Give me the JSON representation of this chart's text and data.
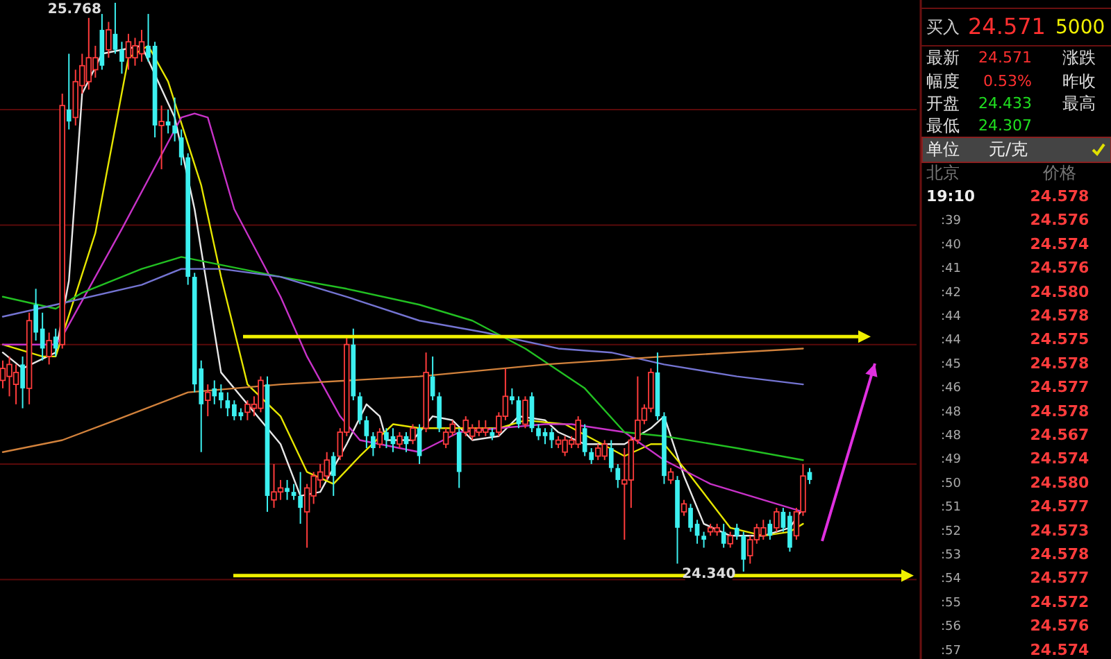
{
  "chart_data": [
    {
      "type": "candlestick",
      "grid": "y",
      "categories": [
        null,
        null,
        null,
        null,
        null,
        null,
        null,
        null,
        null,
        null,
        null,
        null,
        null,
        null,
        null,
        null,
        null,
        null,
        null,
        null,
        null,
        null,
        null,
        null,
        null,
        null,
        null,
        null,
        null,
        null,
        null,
        null,
        null,
        null,
        null,
        null,
        null,
        null,
        null,
        null,
        null,
        null,
        null,
        null,
        null,
        null,
        null,
        null,
        null,
        null,
        null,
        null,
        null,
        null,
        null,
        null,
        null,
        null,
        null,
        null,
        null,
        null,
        null,
        null,
        null,
        null,
        null,
        null,
        null,
        null,
        null,
        null,
        null,
        null,
        null,
        null,
        null,
        null,
        null,
        null,
        null,
        null,
        null,
        null,
        null,
        null,
        null,
        null,
        null,
        null,
        null,
        null,
        null,
        null,
        null,
        null,
        null,
        null,
        null,
        null,
        null,
        null,
        null,
        null,
        null,
        null,
        null,
        null,
        null,
        null,
        null,
        null,
        null,
        null,
        null,
        null,
        null,
        null,
        null,
        null,
        null,
        null,
        null
      ],
      "ohlc": [
        [
          24.82,
          24.87,
          24.8,
          24.85
        ],
        [
          24.83,
          24.88,
          24.78,
          24.86
        ],
        [
          24.81,
          24.86,
          24.76,
          24.84
        ],
        [
          24.86,
          24.88,
          24.75,
          24.8
        ],
        [
          24.8,
          24.99,
          24.76,
          24.97
        ],
        [
          25.01,
          25.05,
          24.92,
          24.94
        ],
        [
          24.95,
          24.99,
          24.87,
          24.9
        ],
        [
          24.88,
          24.94,
          24.86,
          24.92
        ],
        [
          24.93,
          24.95,
          24.88,
          24.9
        ],
        [
          24.91,
          25.54,
          24.9,
          25.51
        ],
        [
          25.5,
          25.64,
          25.45,
          25.47
        ],
        [
          25.48,
          25.6,
          25.46,
          25.57
        ],
        [
          25.56,
          25.64,
          25.54,
          25.61
        ],
        [
          25.57,
          25.73,
          25.55,
          25.63
        ],
        [
          25.6,
          25.66,
          25.58,
          25.63
        ],
        [
          25.7,
          25.74,
          25.6,
          25.61
        ],
        [
          25.65,
          25.72,
          25.63,
          25.7
        ],
        [
          25.69,
          25.768,
          25.64,
          25.65
        ],
        [
          25.65,
          25.67,
          25.59,
          25.62
        ],
        [
          25.63,
          25.69,
          25.6,
          25.67
        ],
        [
          25.63,
          25.68,
          25.61,
          25.66
        ],
        [
          25.64,
          25.7,
          25.62,
          25.67
        ],
        [
          25.66,
          25.74,
          25.62,
          25.63
        ],
        [
          25.66,
          25.67,
          25.43,
          25.46
        ],
        [
          25.46,
          25.51,
          25.35,
          25.47
        ],
        [
          25.47,
          25.5,
          25.44,
          25.46
        ],
        [
          25.46,
          25.53,
          25.42,
          25.44
        ],
        [
          25.43,
          25.45,
          25.36,
          25.38
        ],
        [
          25.38,
          25.39,
          25.06,
          25.08
        ],
        [
          25.08,
          25.09,
          24.79,
          24.81
        ],
        [
          24.85,
          24.87,
          24.64,
          24.76
        ],
        [
          24.77,
          24.81,
          24.73,
          24.79
        ],
        [
          24.8,
          24.82,
          24.76,
          24.78
        ],
        [
          24.79,
          24.81,
          24.75,
          24.77
        ],
        [
          24.77,
          24.79,
          24.73,
          24.75
        ],
        [
          24.76,
          24.77,
          24.72,
          24.73
        ],
        [
          24.74,
          24.75,
          24.72,
          24.73
        ],
        [
          24.74,
          24.77,
          24.72,
          24.76
        ],
        [
          24.75,
          24.78,
          24.73,
          24.76
        ],
        [
          24.75,
          24.83,
          24.74,
          24.82
        ],
        [
          24.81,
          24.83,
          24.49,
          24.53
        ],
        [
          24.52,
          24.61,
          24.5,
          24.54
        ],
        [
          24.54,
          24.57,
          24.52,
          24.55
        ],
        [
          24.55,
          24.57,
          24.52,
          24.54
        ],
        [
          24.54,
          24.56,
          24.52,
          24.53
        ],
        [
          24.53,
          24.59,
          24.46,
          24.5
        ],
        [
          24.49,
          24.56,
          24.4,
          24.55
        ],
        [
          24.53,
          24.59,
          24.51,
          24.58
        ],
        [
          24.57,
          24.61,
          24.55,
          24.59
        ],
        [
          24.58,
          24.64,
          24.57,
          24.62
        ],
        [
          24.63,
          24.64,
          24.53,
          24.58
        ],
        [
          24.63,
          24.7,
          24.62,
          24.69
        ],
        [
          24.69,
          24.93,
          24.68,
          24.91
        ],
        [
          24.91,
          24.95,
          24.77,
          24.78
        ],
        [
          24.78,
          24.79,
          24.71,
          24.72
        ],
        [
          24.72,
          24.73,
          24.65,
          24.68
        ],
        [
          24.68,
          24.69,
          24.63,
          24.65
        ],
        [
          24.66,
          24.7,
          24.65,
          24.69
        ],
        [
          24.69,
          24.7,
          24.65,
          24.67
        ],
        [
          24.68,
          24.7,
          24.64,
          24.66
        ],
        [
          24.66,
          24.69,
          24.65,
          24.68
        ],
        [
          24.68,
          24.69,
          24.64,
          24.66
        ],
        [
          24.67,
          24.71,
          24.66,
          24.7
        ],
        [
          24.7,
          24.71,
          24.61,
          24.63
        ],
        [
          24.7,
          24.89,
          24.69,
          24.84
        ],
        [
          24.83,
          24.88,
          24.77,
          24.78
        ],
        [
          24.78,
          24.79,
          24.69,
          24.7
        ],
        [
          24.66,
          24.7,
          24.65,
          24.69
        ],
        [
          24.69,
          24.72,
          24.68,
          24.71
        ],
        [
          24.69,
          24.7,
          24.55,
          24.59
        ],
        [
          24.69,
          24.73,
          24.68,
          24.72
        ],
        [
          24.68,
          24.71,
          24.67,
          24.7
        ],
        [
          24.69,
          24.72,
          24.68,
          24.7
        ],
        [
          24.69,
          24.72,
          24.68,
          24.7
        ],
        [
          24.69,
          24.7,
          24.67,
          24.68
        ],
        [
          24.69,
          24.74,
          24.68,
          24.73
        ],
        [
          24.73,
          24.85,
          24.72,
          24.78
        ],
        [
          24.78,
          24.8,
          24.76,
          24.77
        ],
        [
          24.77,
          24.78,
          24.7,
          24.71
        ],
        [
          24.71,
          24.78,
          24.7,
          24.77
        ],
        [
          24.78,
          24.79,
          24.69,
          24.7
        ],
        [
          24.7,
          24.71,
          24.67,
          24.68
        ],
        [
          24.69,
          24.7,
          24.66,
          24.68
        ],
        [
          24.69,
          24.7,
          24.65,
          24.67
        ],
        [
          24.66,
          24.68,
          24.65,
          24.67
        ],
        [
          24.64,
          24.68,
          24.63,
          24.67
        ],
        [
          24.66,
          24.68,
          24.65,
          24.67
        ],
        [
          24.66,
          24.73,
          24.65,
          24.72
        ],
        [
          24.7,
          24.71,
          24.63,
          24.64
        ],
        [
          24.64,
          24.65,
          24.61,
          24.62
        ],
        [
          24.63,
          24.66,
          24.62,
          24.65
        ],
        [
          24.63,
          24.67,
          24.62,
          24.66
        ],
        [
          24.65,
          24.67,
          24.59,
          24.6
        ],
        [
          24.6,
          24.61,
          24.55,
          24.57
        ],
        [
          24.56,
          24.65,
          24.42,
          24.57
        ],
        [
          24.57,
          24.68,
          24.5,
          24.67
        ],
        [
          24.67,
          24.83,
          24.66,
          24.72
        ],
        [
          24.72,
          24.76,
          24.71,
          24.75
        ],
        [
          24.75,
          24.85,
          24.74,
          24.84
        ],
        [
          24.84,
          24.89,
          24.72,
          24.73
        ],
        [
          24.73,
          24.74,
          24.56,
          24.58
        ],
        [
          24.57,
          24.6,
          24.56,
          24.59
        ],
        [
          24.57,
          24.58,
          24.36,
          24.45
        ],
        [
          24.49,
          24.52,
          24.48,
          24.51
        ],
        [
          24.5,
          24.51,
          24.44,
          24.45
        ],
        [
          24.46,
          24.47,
          24.41,
          24.43
        ],
        [
          24.43,
          24.44,
          24.4,
          24.42
        ],
        [
          24.44,
          24.46,
          24.43,
          24.45
        ],
        [
          24.44,
          24.46,
          24.43,
          24.45
        ],
        [
          24.44,
          24.46,
          24.4,
          24.41
        ],
        [
          24.41,
          24.44,
          24.4,
          24.43
        ],
        [
          24.45,
          24.46,
          24.42,
          24.43
        ],
        [
          24.43,
          24.44,
          24.34,
          24.37
        ],
        [
          24.38,
          24.43,
          24.36,
          24.42
        ],
        [
          24.42,
          24.46,
          24.41,
          24.45
        ],
        [
          24.43,
          24.47,
          24.42,
          24.45
        ],
        [
          24.46,
          24.47,
          24.42,
          24.43
        ],
        [
          24.45,
          24.5,
          24.44,
          24.49
        ],
        [
          24.49,
          24.5,
          24.44,
          24.45
        ],
        [
          24.48,
          24.49,
          24.39,
          24.4
        ],
        [
          24.43,
          24.5,
          24.42,
          24.49
        ],
        [
          24.49,
          24.61,
          24.48,
          24.58
        ],
        [
          24.59,
          24.6,
          24.56,
          24.57
        ]
      ],
      "series": [
        {
          "type": "line",
          "color": "#e8e8e8",
          "values": [
            24.89,
            null,
            null,
            24.85,
            null,
            null,
            null,
            null,
            24.89,
            null,
            25.07,
            null,
            25.54,
            null,
            null,
            25.64,
            null,
            null,
            null,
            null,
            null,
            25.66,
            null,
            null,
            null,
            null,
            25.48,
            null,
            null,
            25.25,
            null,
            null,
            null,
            24.84,
            null,
            null,
            null,
            24.76,
            null,
            null,
            null,
            null,
            24.66,
            null,
            null,
            24.53,
            null,
            null,
            24.54,
            null,
            null,
            null,
            24.66,
            null,
            null,
            24.76,
            null,
            24.73,
            24.67,
            null,
            null,
            null,
            24.67,
            null,
            null,
            24.73,
            null,
            null,
            24.72,
            null,
            null,
            24.67,
            null,
            null,
            null,
            24.68,
            null,
            null,
            24.73,
            null,
            null,
            null,
            24.72,
            null,
            24.69,
            null,
            null,
            null,
            24.66,
            null,
            null,
            null,
            null,
            null,
            24.66,
            null,
            null,
            null,
            24.7,
            null,
            24.73,
            null,
            null,
            24.58,
            null,
            null,
            24.46,
            null,
            null,
            null,
            24.43,
            null,
            null,
            null,
            null,
            24.43,
            null,
            null,
            null,
            24.45,
            null,
            24.5,
            null
          ]
        },
        {
          "type": "line",
          "color": "#e6e600",
          "values": [
            24.91,
            null,
            null,
            null,
            null,
            null,
            24.88,
            null,
            24.88,
            null,
            null,
            null,
            null,
            null,
            25.19,
            null,
            null,
            null,
            null,
            25.63,
            null,
            null,
            25.66,
            null,
            null,
            25.57,
            null,
            null,
            null,
            null,
            25.31,
            null,
            null,
            25.08,
            null,
            null,
            null,
            24.81,
            null,
            null,
            null,
            null,
            24.73,
            null,
            null,
            null,
            24.59,
            null,
            null,
            null,
            24.56,
            null,
            null,
            null,
            24.63,
            null,
            null,
            null,
            null,
            24.71,
            null,
            null,
            null,
            24.7,
            null,
            null,
            null,
            24.7,
            null,
            null,
            null,
            null,
            null,
            null,
            null,
            24.7,
            null,
            null,
            null,
            24.72,
            null,
            null,
            null,
            null,
            null,
            24.71,
            null,
            null,
            null,
            null,
            null,
            null,
            null,
            null,
            24.63,
            null,
            null,
            null,
            24.66,
            null,
            24.66,
            null,
            null,
            null,
            24.58,
            null,
            null,
            null,
            null,
            null,
            24.45,
            null,
            null,
            null,
            null,
            24.43,
            null,
            null,
            null,
            24.44,
            null,
            24.46,
            null
          ]
        },
        {
          "type": "line",
          "color": "#c832c8",
          "values": [
            24.91,
            null,
            24.91,
            null,
            null,
            null,
            null,
            null,
            24.91,
            24.93,
            null,
            null,
            null,
            null,
            null,
            null,
            null,
            null,
            25.2,
            null,
            null,
            null,
            null,
            null,
            null,
            null,
            null,
            25.48,
            null,
            25.49,
            null,
            25.48,
            null,
            null,
            null,
            25.25,
            null,
            null,
            null,
            null,
            null,
            null,
            25.03,
            null,
            null,
            null,
            24.88,
            null,
            null,
            null,
            null,
            24.73,
            null,
            null,
            24.67,
            null,
            null,
            24.66,
            null,
            null,
            null,
            null,
            null,
            24.64,
            null,
            null,
            null,
            null,
            null,
            24.69,
            null,
            null,
            null,
            null,
            null,
            24.7,
            null,
            null,
            null,
            null,
            null,
            null,
            24.71,
            null,
            null,
            null,
            24.71,
            null,
            null,
            null,
            null,
            null,
            null,
            null,
            24.69,
            null,
            null,
            null,
            null,
            null,
            24.62,
            null,
            null,
            null,
            null,
            null,
            null,
            24.56,
            null,
            null,
            null,
            null,
            null,
            null,
            null,
            24.52,
            null,
            null,
            null,
            24.5,
            null,
            24.49,
            null
          ]
        },
        {
          "type": "line",
          "color": "#22c022",
          "values": [
            25.03,
            null,
            null,
            null,
            null,
            null,
            null,
            null,
            25.0,
            null,
            null,
            null,
            25.04,
            null,
            null,
            null,
            null,
            null,
            null,
            null,
            null,
            25.1,
            null,
            null,
            null,
            null,
            null,
            25.13,
            null,
            null,
            null,
            null,
            null,
            25.11,
            null,
            null,
            null,
            null,
            null,
            null,
            null,
            null,
            25.08,
            null,
            null,
            null,
            null,
            null,
            null,
            null,
            null,
            null,
            25.05,
            null,
            null,
            null,
            null,
            null,
            null,
            null,
            null,
            null,
            null,
            25.01,
            null,
            null,
            null,
            null,
            null,
            null,
            null,
            24.97,
            null,
            null,
            null,
            null,
            null,
            null,
            null,
            24.9,
            null,
            null,
            null,
            null,
            null,
            null,
            null,
            null,
            24.8,
            null,
            null,
            null,
            null,
            null,
            24.69,
            null,
            null,
            null,
            null,
            null,
            24.68,
            null,
            null,
            null,
            null,
            null,
            null,
            null,
            null,
            null,
            null,
            24.65,
            null,
            null,
            null,
            null,
            null,
            null,
            null,
            null,
            null,
            24.62,
            null
          ]
        },
        {
          "type": "line",
          "color": "#7474d2",
          "values": [
            24.98,
            null,
            null,
            null,
            null,
            null,
            null,
            null,
            25.01,
            null,
            null,
            null,
            null,
            null,
            null,
            null,
            null,
            null,
            null,
            null,
            null,
            25.06,
            null,
            null,
            null,
            null,
            null,
            25.1,
            null,
            null,
            null,
            null,
            null,
            25.1,
            null,
            null,
            null,
            null,
            null,
            null,
            null,
            null,
            25.08,
            null,
            null,
            null,
            null,
            null,
            null,
            null,
            null,
            null,
            25.03,
            null,
            null,
            null,
            null,
            null,
            null,
            null,
            null,
            null,
            null,
            24.97,
            null,
            null,
            null,
            null,
            null,
            null,
            null,
            null,
            null,
            24.94,
            null,
            null,
            null,
            null,
            null,
            null,
            null,
            null,
            null,
            null,
            24.9,
            null,
            null,
            null,
            null,
            null,
            null,
            null,
            24.89,
            null,
            null,
            null,
            null,
            null,
            null,
            null,
            24.86,
            null,
            null,
            null,
            null,
            null,
            null,
            null,
            null,
            null,
            null,
            24.83,
            null,
            null,
            null,
            null,
            null,
            null,
            null,
            null,
            null,
            24.81,
            null
          ]
        },
        {
          "type": "line",
          "color": "#d2823c",
          "values": [
            24.64,
            null,
            null,
            null,
            null,
            null,
            null,
            null,
            null,
            24.67,
            null,
            null,
            null,
            null,
            null,
            null,
            null,
            24.72,
            null,
            null,
            null,
            null,
            null,
            null,
            null,
            null,
            null,
            null,
            24.79,
            null,
            null,
            null,
            null,
            null,
            null,
            null,
            null,
            null,
            null,
            null,
            null,
            null,
            24.81,
            null,
            null,
            null,
            null,
            null,
            null,
            null,
            null,
            null,
            null,
            null,
            null,
            null,
            null,
            null,
            null,
            null,
            null,
            null,
            null,
            24.83,
            null,
            null,
            null,
            null,
            null,
            null,
            null,
            null,
            null,
            null,
            null,
            null,
            null,
            null,
            null,
            null,
            null,
            null,
            24.86,
            null,
            null,
            null,
            null,
            null,
            null,
            null,
            null,
            null,
            null,
            null,
            null,
            null,
            null,
            null,
            null,
            null,
            24.88,
            null,
            null,
            null,
            null,
            null,
            null,
            null,
            null,
            null,
            null,
            null,
            null,
            null,
            null,
            null,
            null,
            null,
            null,
            null,
            null,
            24.9,
            null
          ]
        }
      ],
      "annotations": [
        "25.768",
        "24.340"
      ],
      "ref_lines": [
        {
          "axis": "y",
          "value": 24.93,
          "color": "#f0f000"
        },
        {
          "axis": "y",
          "value": 24.33,
          "color": "#f0f000"
        }
      ],
      "yticks": [
        {
          "value": 24.32,
          "label": null
        },
        {
          "value": 24.61,
          "label": null
        },
        {
          "value": 24.91,
          "label": null
        },
        {
          "value": 25.21,
          "label": null
        },
        {
          "value": 25.5,
          "label": null
        }
      ]
    },
    {
      "type": "other",
      "annotations": [
        "买入",
        "24.571",
        "5000",
        "最新",
        "24.571",
        "涨跌",
        "幅度",
        "0.53%",
        "昨收",
        "开盘",
        "24.433",
        "最高",
        "最低",
        "24.307",
        "单位",
        "元/克",
        "北京",
        "价格",
        "19:10",
        "24.578",
        ":39",
        "24.576",
        ":40",
        "24.574",
        ":41",
        "24.576",
        ":42",
        "24.580",
        ":44",
        "24.578",
        ":44",
        "24.575",
        ":45",
        "24.578",
        ":46",
        "24.577",
        ":48",
        "24.578",
        ":48",
        "24.567",
        ":49",
        "24.574",
        ":50",
        "24.580",
        ":51",
        "24.577",
        ":52",
        "24.573",
        ":53",
        "24.578",
        ":54",
        "24.577",
        ":55",
        "24.572",
        ":56",
        "24.576",
        ":57",
        "24.574"
      ]
    }
  ]
}
